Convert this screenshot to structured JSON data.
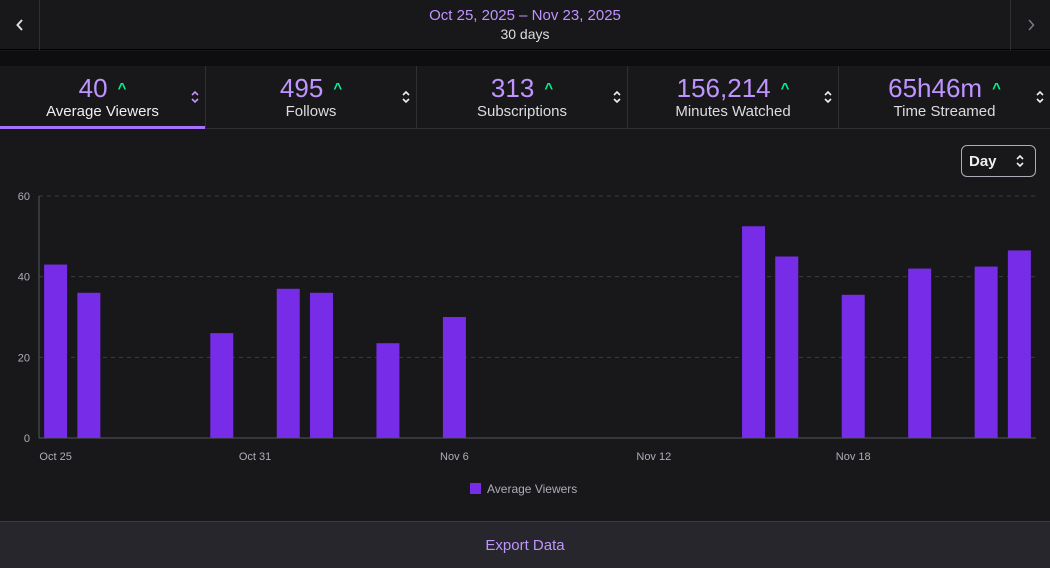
{
  "header": {
    "date_range": "Oct 25, 2025 – Nov 23, 2025",
    "days": "30 days",
    "prev_icon": "chevron-left-icon",
    "next_icon": "chevron-right-icon"
  },
  "tabs": [
    {
      "value": "40",
      "label": "Average Viewers",
      "trend": "up",
      "active": true
    },
    {
      "value": "495",
      "label": "Follows",
      "trend": "up",
      "active": false
    },
    {
      "value": "313",
      "label": "Subscriptions",
      "trend": "up",
      "active": false
    },
    {
      "value": "156,214",
      "label": "Minutes Watched",
      "trend": "up",
      "active": false
    },
    {
      "value": "65h46m",
      "label": "Time Streamed",
      "trend": "up",
      "active": false
    }
  ],
  "period_select": {
    "value": "Day"
  },
  "colors": {
    "bar": "#772ce8",
    "accent": "#bf94ff",
    "trend_up": "#00f593"
  },
  "chart_data": {
    "type": "bar",
    "x": [
      "Oct 25",
      "Oct 26",
      "Oct 27",
      "Oct 28",
      "Oct 29",
      "Oct 30",
      "Oct 31",
      "Nov 1",
      "Nov 2",
      "Nov 3",
      "Nov 4",
      "Nov 5",
      "Nov 6",
      "Nov 7",
      "Nov 8",
      "Nov 9",
      "Nov 10",
      "Nov 11",
      "Nov 12",
      "Nov 13",
      "Nov 14",
      "Nov 15",
      "Nov 16",
      "Nov 17",
      "Nov 18",
      "Nov 19",
      "Nov 20",
      "Nov 21",
      "Nov 22",
      "Nov 23"
    ],
    "series": [
      {
        "name": "Average Viewers",
        "values": [
          43,
          36,
          null,
          null,
          null,
          26,
          null,
          37,
          36,
          null,
          23.5,
          null,
          30,
          null,
          null,
          null,
          null,
          null,
          null,
          null,
          null,
          52.5,
          45,
          null,
          35.5,
          null,
          42,
          null,
          42.5,
          46.5
        ]
      }
    ],
    "x_tick_labels": [
      "Oct 25",
      "Oct 31",
      "Nov 6",
      "Nov 12",
      "Nov 18"
    ],
    "y_ticks": [
      0,
      20,
      40,
      60
    ],
    "ylim": [
      0,
      60
    ],
    "grid": true,
    "legend": "bottom-center"
  },
  "footer": {
    "export_label": "Export Data"
  }
}
